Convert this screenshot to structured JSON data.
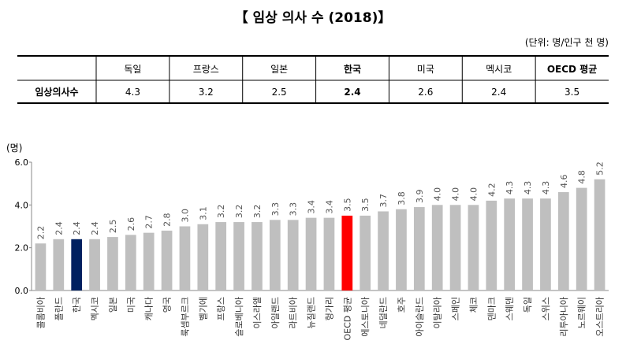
{
  "header": {
    "title": "【 임상 의사 수 (2018)】",
    "unit": "(단위: 명/인구 천 명)"
  },
  "table": {
    "columns": [
      "독일",
      "프랑스",
      "일본",
      "한국",
      "미국",
      "멕시코",
      "OECD 평균"
    ],
    "row_label": "임상의사수",
    "values": [
      4.3,
      3.2,
      2.5,
      2.4,
      2.6,
      2.4,
      3.5
    ]
  },
  "chart_data": {
    "type": "bar",
    "y_label": "(명)",
    "categories": [
      "콜롬비아",
      "폴란드",
      "한국",
      "멕시코",
      "일본",
      "미국",
      "캐나다",
      "영국",
      "룩셈부르크",
      "벨기에",
      "프랑스",
      "슬로베니아",
      "이스라엘",
      "아일랜드",
      "라트비아",
      "뉴질랜드",
      "헝가리",
      "OECD 평균",
      "에스토니아",
      "네덜란드",
      "호주",
      "아이슬란드",
      "이탈리아",
      "스페인",
      "체코",
      "덴마크",
      "스웨덴",
      "독일",
      "스위스",
      "리투아니아",
      "노르웨이",
      "오스트리아"
    ],
    "values": [
      2.2,
      2.4,
      2.4,
      2.4,
      2.5,
      2.6,
      2.7,
      2.8,
      3.0,
      3.1,
      3.2,
      3.2,
      3.2,
      3.3,
      3.3,
      3.4,
      3.4,
      3.5,
      3.5,
      3.7,
      3.8,
      3.9,
      4.0,
      4.0,
      4.0,
      4.2,
      4.3,
      4.3,
      4.3,
      4.6,
      4.8,
      5.2
    ],
    "value_labels": [
      "2.2",
      "2.4",
      "2.4",
      "2.4",
      "2.5",
      "2.6",
      "2.7",
      "2.8",
      "3.0",
      "3.1",
      "3.2",
      "3.2",
      "3.2",
      "3.3",
      "3.3",
      "3.4",
      "3.4",
      "3.5",
      "3.5",
      "3.7",
      "3.8",
      "3.9",
      "4.0",
      "4.0",
      "4.0",
      "4.2",
      "4.3",
      "4.3",
      "4.3",
      "4.6",
      "4.8",
      "5.2"
    ],
    "color": "#bfbfbf",
    "highlight_colors": {
      "2": "#002060",
      "17": "#ff0000"
    },
    "ylim": [
      0,
      6
    ],
    "yticks": [
      {
        "value": 0,
        "label": "0.0"
      },
      {
        "value": 2,
        "label": "2.0"
      },
      {
        "value": 4,
        "label": "4.0"
      },
      {
        "value": 6,
        "label": "6.0"
      }
    ],
    "grid": false
  }
}
